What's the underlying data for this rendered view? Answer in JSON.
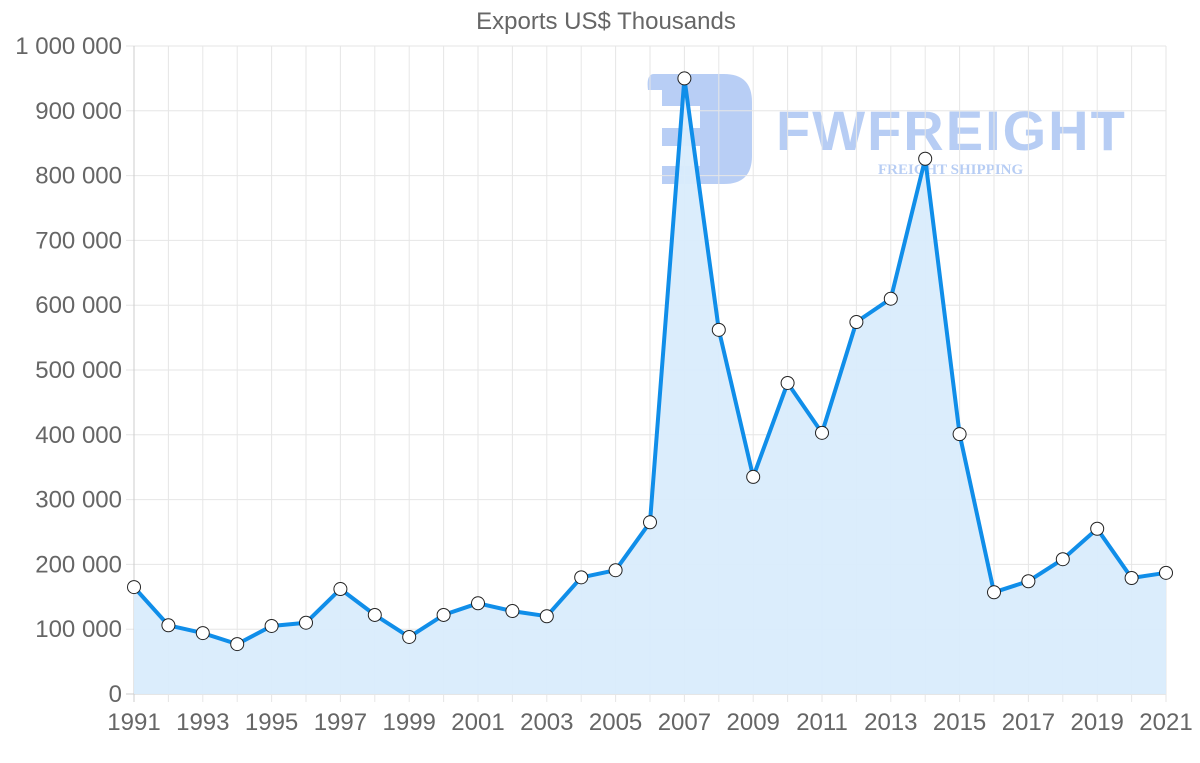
{
  "chart_data": {
    "type": "line",
    "title": "Exports US$ Thousands",
    "xlabel": "",
    "ylabel": "",
    "ylim": [
      0,
      1000000
    ],
    "xlim": [
      1991,
      2021
    ],
    "grid": true,
    "legend": null,
    "fill": true,
    "y_ticks": [
      "0",
      "100 000",
      "200 000",
      "300 000",
      "400 000",
      "500 000",
      "600 000",
      "700 000",
      "800 000",
      "900 000",
      "1 000 000"
    ],
    "x_ticks": [
      "1991",
      "1993",
      "1995",
      "1997",
      "1999",
      "2001",
      "2003",
      "2005",
      "2007",
      "2009",
      "2011",
      "2013",
      "2015",
      "2017",
      "2019",
      "2021"
    ],
    "x": [
      1991,
      1992,
      1993,
      1994,
      1995,
      1996,
      1997,
      1998,
      1999,
      2000,
      2001,
      2002,
      2003,
      2004,
      2005,
      2006,
      2007,
      2008,
      2009,
      2010,
      2011,
      2012,
      2013,
      2014,
      2015,
      2016,
      2017,
      2018,
      2019,
      2020,
      2021
    ],
    "series": [
      {
        "name": "Exports US$ Thousands",
        "color": "#108EE9",
        "fill_color": "#D9ECFC",
        "values": [
          165000,
          106000,
          94000,
          77000,
          105000,
          110000,
          162000,
          122000,
          88000,
          122000,
          140000,
          128000,
          120000,
          180000,
          191000,
          265000,
          950000,
          562000,
          335000,
          480000,
          403000,
          574000,
          610000,
          826000,
          401000,
          157000,
          174000,
          208000,
          255000,
          179000,
          187000
        ]
      }
    ]
  },
  "watermark": {
    "brand": "FWFREIGHT",
    "tagline": "FREIGHT SHIPPING",
    "color": "#7EA6EC"
  }
}
